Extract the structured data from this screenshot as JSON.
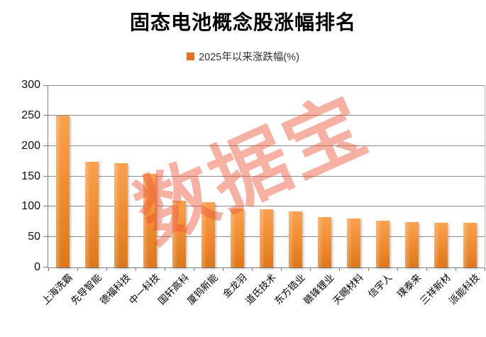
{
  "chart_data": {
    "type": "bar",
    "title": "固态电池概念股涨幅排名",
    "legend": "2025年以来涨跌幅(%)",
    "categories": [
      "上海洗霸",
      "先导智能",
      "德福科技",
      "中一科技",
      "国轩高科",
      "厦钨新能",
      "金龙羽",
      "道氏技术",
      "东方锆业",
      "赣锋锂业",
      "天赐材料",
      "信宇人",
      "璞泰来",
      "三祥新材",
      "派能科技"
    ],
    "values": [
      250,
      174,
      172,
      154,
      110,
      107,
      97,
      96,
      92,
      83,
      80,
      77,
      75,
      74,
      73
    ],
    "xlabel": "",
    "ylabel": "",
    "ylim": [
      0,
      300
    ],
    "yticks": [
      0,
      50,
      100,
      150,
      200,
      250,
      300
    ],
    "grid": true,
    "legend_position": "top-center"
  },
  "watermark": {
    "text": "数据宝"
  },
  "colors": {
    "bar_top": "#F9A14E",
    "bar_mid": "#EF8A2F",
    "bar_bottom": "#DC781A",
    "legend_square": "#E8731E",
    "watermark": "#EE5335",
    "gridline": "#8C8C8C",
    "axis": "#808080",
    "title": "#000000"
  }
}
